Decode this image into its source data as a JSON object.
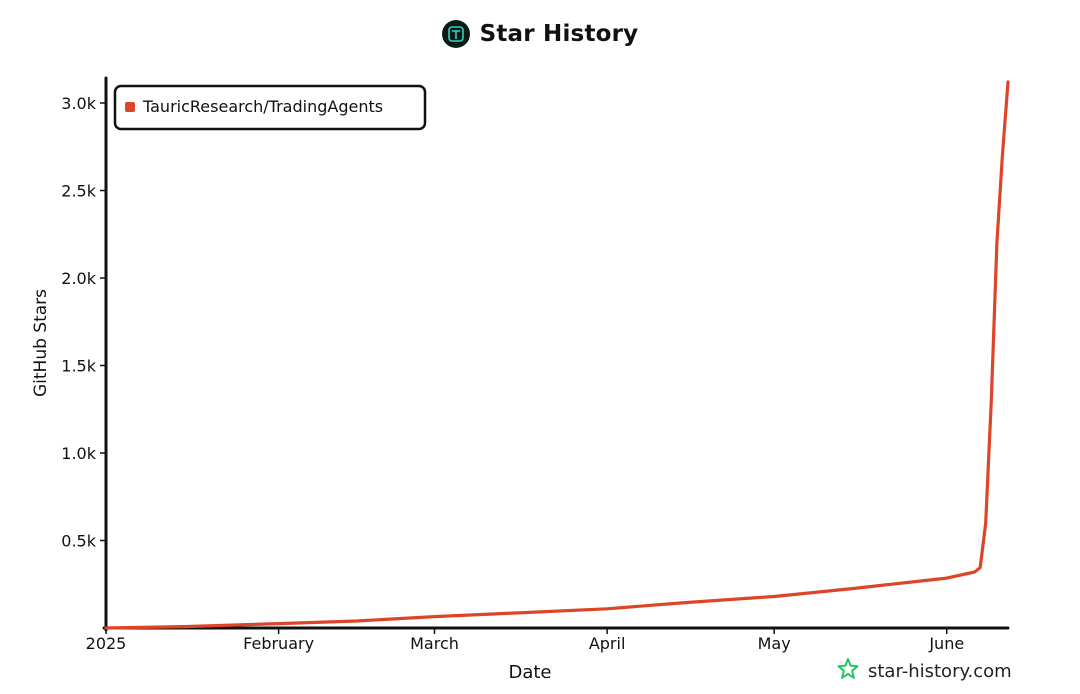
{
  "header": {
    "title": "Star History",
    "logo_icon": "star-history-logo-icon"
  },
  "credit": {
    "text": "star-history.com",
    "icon": "star-outline-icon",
    "icon_color": "#22c55e"
  },
  "chart_data": {
    "type": "line",
    "title": "Star History",
    "xlabel": "Date",
    "ylabel": "GitHub Stars",
    "ylim": [
      0,
      3120
    ],
    "xlim": [
      "2025-01-01",
      "2025-06-12"
    ],
    "x_ticks": [
      {
        "date": "2025-01-01",
        "label": "2025"
      },
      {
        "date": "2025-02-01",
        "label": "February"
      },
      {
        "date": "2025-03-01",
        "label": "March"
      },
      {
        "date": "2025-04-01",
        "label": "April"
      },
      {
        "date": "2025-05-01",
        "label": "May"
      },
      {
        "date": "2025-06-01",
        "label": "June"
      }
    ],
    "y_ticks": [
      {
        "value": 500,
        "label": "0.5k"
      },
      {
        "value": 1000,
        "label": "1.0k"
      },
      {
        "value": 1500,
        "label": "1.5k"
      },
      {
        "value": 2000,
        "label": "2.0k"
      },
      {
        "value": 2500,
        "label": "2.5k"
      },
      {
        "value": 3000,
        "label": "3.0k"
      }
    ],
    "legend_position": "top-left",
    "grid": false,
    "series": [
      {
        "name": "TauricResearch/TradingAgents",
        "color": "#dd4528",
        "points": [
          {
            "x": "2025-01-01",
            "y": 0
          },
          {
            "x": "2025-01-15",
            "y": 8
          },
          {
            "x": "2025-02-01",
            "y": 25
          },
          {
            "x": "2025-02-15",
            "y": 40
          },
          {
            "x": "2025-03-01",
            "y": 65
          },
          {
            "x": "2025-03-15",
            "y": 85
          },
          {
            "x": "2025-04-01",
            "y": 110
          },
          {
            "x": "2025-04-15",
            "y": 145
          },
          {
            "x": "2025-05-01",
            "y": 180
          },
          {
            "x": "2025-05-15",
            "y": 225
          },
          {
            "x": "2025-06-01",
            "y": 285
          },
          {
            "x": "2025-06-06",
            "y": 320
          },
          {
            "x": "2025-06-07",
            "y": 345
          },
          {
            "x": "2025-06-08",
            "y": 600
          },
          {
            "x": "2025-06-09",
            "y": 1300
          },
          {
            "x": "2025-06-10",
            "y": 2200
          },
          {
            "x": "2025-06-11",
            "y": 2700
          },
          {
            "x": "2025-06-12",
            "y": 3120
          }
        ]
      }
    ]
  }
}
